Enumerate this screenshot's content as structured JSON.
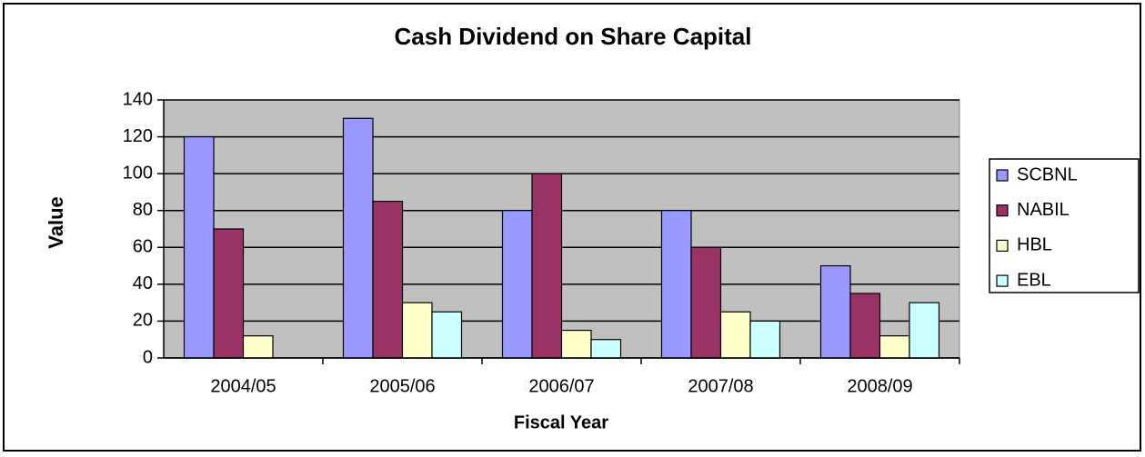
{
  "chart_data": {
    "type": "bar",
    "title": "Cash Dividend on Share Capital",
    "x_label": "Fiscal Year",
    "y_label": "Value",
    "categories": [
      "2004/05",
      "2005/06",
      "2006/07",
      "2007/08",
      "2008/09"
    ],
    "series": [
      {
        "name": "SCBNL",
        "color": "#9999ff",
        "values": [
          120,
          130,
          80,
          80,
          50
        ]
      },
      {
        "name": "NABIL",
        "color": "#993366",
        "values": [
          70,
          85,
          100,
          60,
          35
        ]
      },
      {
        "name": "HBL",
        "color": "#ffffcc",
        "values": [
          12,
          30,
          15,
          25,
          12
        ]
      },
      {
        "name": "EBL",
        "color": "#ccffff",
        "values": [
          null,
          25,
          10,
          20,
          30
        ]
      }
    ],
    "ylim": [
      0,
      140
    ],
    "yticks": [
      0,
      20,
      40,
      60,
      80,
      100,
      120,
      140
    ],
    "grid": true,
    "legend": "right"
  }
}
